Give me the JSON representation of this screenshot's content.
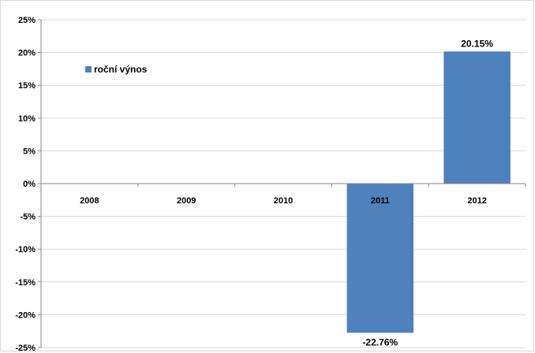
{
  "chart_data": {
    "type": "bar",
    "categories": [
      "2008",
      "2009",
      "2010",
      "2011",
      "2012"
    ],
    "series": [
      {
        "name": "roční výnos",
        "values": [
          0,
          0,
          0,
          -22.76,
          20.15
        ],
        "color": "#4F81BD"
      }
    ],
    "data_labels": [
      "",
      "",
      "",
      "-22.76%",
      "20.15%"
    ],
    "y_ticks": [
      "25%",
      "20%",
      "15%",
      "10%",
      "5%",
      "0%",
      "-5%",
      "-10%",
      "-15%",
      "-20%",
      "-25%"
    ],
    "ylim": [
      -25,
      25
    ],
    "grid": true,
    "legend_position": "top-left"
  }
}
